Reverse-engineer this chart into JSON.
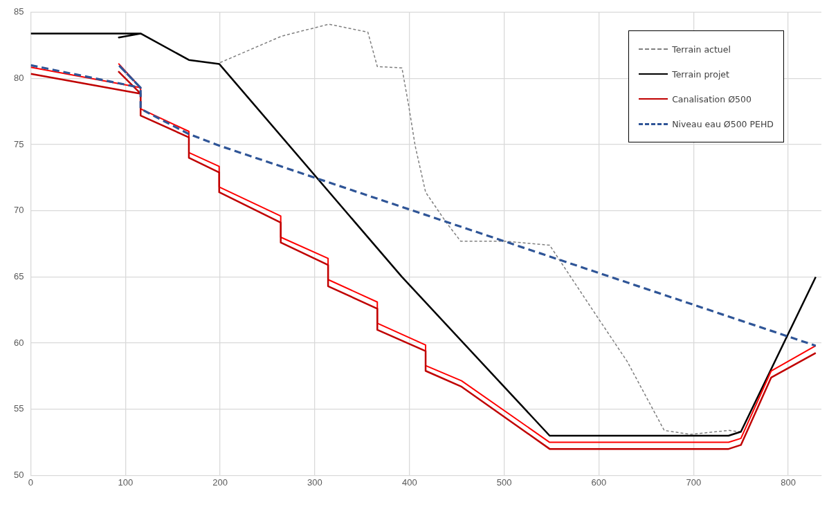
{
  "chart_data": {
    "type": "line",
    "xlim": [
      0,
      835
    ],
    "xticks": [
      0,
      100,
      200,
      300,
      400,
      500,
      600,
      700,
      800
    ],
    "ylim": [
      50,
      85
    ],
    "yticks": [
      50,
      55,
      60,
      65,
      70,
      75,
      80,
      85
    ],
    "grid": true,
    "legend": "top right",
    "marker": "none",
    "series": [
      {
        "name": "Terrain actuel",
        "color": "#7f7f7f",
        "line_style": "dashed",
        "x": [
          200,
          265,
          287,
          315,
          356,
          366,
          392,
          399,
          406,
          417,
          439,
          454,
          501,
          548,
          600,
          630,
          669,
          697,
          737,
          749
        ],
        "values": [
          81.2,
          83.2,
          83.6,
          84.1,
          83.5,
          80.9,
          80.8,
          78,
          74.9,
          71.4,
          69.1,
          67.7,
          67.7,
          67.4,
          61.8,
          58.6,
          53.4,
          53.1,
          53.4,
          53.3
        ]
      },
      {
        "name": "Terrain projet",
        "color": "#000000",
        "line_style": "solid",
        "x": [
          0,
          116,
          93,
          116,
          167,
          199,
          392,
          548,
          737,
          750,
          829
        ],
        "values": [
          83.4,
          83.4,
          83.1,
          83.4,
          81.4,
          81.1,
          65,
          53,
          53,
          53.3,
          65
        ]
      },
      {
        "color": "#ff0000",
        "line_style": "solid",
        "x": [
          0,
          116,
          93,
          116,
          116,
          167,
          167,
          199,
          199,
          264,
          264,
          314,
          314,
          366,
          366,
          417,
          417,
          455,
          548,
          737,
          750,
          782,
          829
        ],
        "values": [
          80.85,
          79.3,
          81.1,
          79.3,
          77.7,
          76,
          74.4,
          73.35,
          71.8,
          69.6,
          68,
          66.4,
          64.8,
          63.1,
          61.5,
          59.85,
          58.3,
          57.15,
          52.5,
          52.5,
          52.8,
          57.9,
          59.8
        ]
      },
      {
        "name": "Canalisation Ø500",
        "color": "#c00000",
        "line_style": "solid",
        "x": [
          0,
          116,
          93,
          116,
          116,
          167,
          167,
          199,
          199,
          264,
          264,
          314,
          314,
          366,
          366,
          417,
          417,
          455,
          548,
          737,
          750,
          782,
          829
        ],
        "values": [
          80.35,
          78.85,
          80.5,
          78.85,
          77.2,
          75.55,
          74,
          72.9,
          71.4,
          69.1,
          67.6,
          65.9,
          64.3,
          62.6,
          61,
          59.4,
          57.9,
          56.7,
          52,
          52,
          52.3,
          57.4,
          59.25
        ]
      },
      {
        "name": "Niveau eau Ø500 PEHD",
        "color": "#2f5597",
        "line_style": "dashed",
        "x": [
          0,
          116,
          93,
          116,
          116,
          167,
          200,
          829
        ],
        "values": [
          81,
          79.3,
          81,
          79.3,
          77.7,
          75.8,
          74.9,
          59.8
        ]
      }
    ]
  }
}
